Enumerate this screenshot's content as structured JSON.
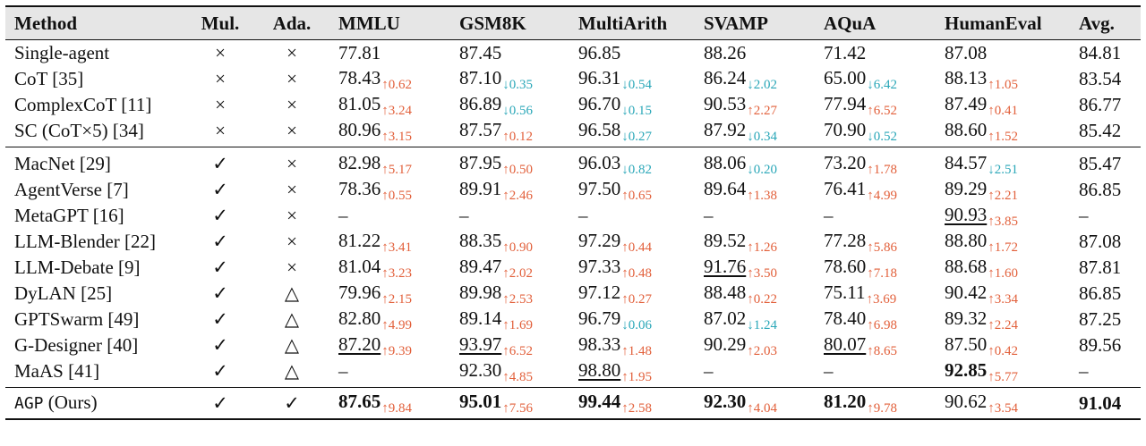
{
  "header": [
    "Method",
    "Mul.",
    "Ada.",
    "MMLU",
    "GSM8K",
    "MultiArith",
    "SVAMP",
    "AQuA",
    "HumanEval",
    "Avg."
  ],
  "rows": [
    {
      "method": "Single-agent",
      "mul": "×",
      "ada": "×",
      "cells": [
        {
          "v": "77.81"
        },
        {
          "v": "87.45"
        },
        {
          "v": "96.85"
        },
        {
          "v": "88.26"
        },
        {
          "v": "71.42"
        },
        {
          "v": "87.08"
        }
      ],
      "avg": "84.81"
    },
    {
      "method": "CoT [35]",
      "mul": "×",
      "ada": "×",
      "cells": [
        {
          "v": "78.43",
          "d": "↑0.62",
          "dir": "up"
        },
        {
          "v": "87.10",
          "d": "↓0.35",
          "dir": "down"
        },
        {
          "v": "96.31",
          "d": "↓0.54",
          "dir": "down"
        },
        {
          "v": "86.24",
          "d": "↓2.02",
          "dir": "down"
        },
        {
          "v": "65.00",
          "d": "↓6.42",
          "dir": "down"
        },
        {
          "v": "88.13",
          "d": "↑1.05",
          "dir": "up"
        }
      ],
      "avg": "83.54"
    },
    {
      "method": "ComplexCoT [11]",
      "mul": "×",
      "ada": "×",
      "cells": [
        {
          "v": "81.05",
          "d": "↑3.24",
          "dir": "up"
        },
        {
          "v": "86.89",
          "d": "↓0.56",
          "dir": "down"
        },
        {
          "v": "96.70",
          "d": "↓0.15",
          "dir": "down"
        },
        {
          "v": "90.53",
          "d": "↑2.27",
          "dir": "up"
        },
        {
          "v": "77.94",
          "d": "↑6.52",
          "dir": "up"
        },
        {
          "v": "87.49",
          "d": "↑0.41",
          "dir": "up"
        }
      ],
      "avg": "86.77"
    },
    {
      "method": "SC (CoT×5) [34]",
      "mul": "×",
      "ada": "×",
      "cells": [
        {
          "v": "80.96",
          "d": "↑3.15",
          "dir": "up"
        },
        {
          "v": "87.57",
          "d": "↑0.12",
          "dir": "up"
        },
        {
          "v": "96.58",
          "d": "↓0.27",
          "dir": "down"
        },
        {
          "v": "87.92",
          "d": "↓0.34",
          "dir": "down"
        },
        {
          "v": "70.90",
          "d": "↓0.52",
          "dir": "down"
        },
        {
          "v": "88.60",
          "d": "↑1.52",
          "dir": "up"
        }
      ],
      "avg": "85.42"
    },
    {
      "method": "MacNet [29]",
      "mul": "✓",
      "ada": "×",
      "cells": [
        {
          "v": "82.98",
          "d": "↑5.17",
          "dir": "up"
        },
        {
          "v": "87.95",
          "d": "↑0.50",
          "dir": "up"
        },
        {
          "v": "96.03",
          "d": "↓0.82",
          "dir": "down"
        },
        {
          "v": "88.06",
          "d": "↓0.20",
          "dir": "down"
        },
        {
          "v": "73.20",
          "d": "↑1.78",
          "dir": "up"
        },
        {
          "v": "84.57",
          "d": "↓2.51",
          "dir": "down"
        }
      ],
      "avg": "85.47"
    },
    {
      "method": "AgentVerse [7]",
      "mul": "✓",
      "ada": "×",
      "cells": [
        {
          "v": "78.36",
          "d": "↑0.55",
          "dir": "up"
        },
        {
          "v": "89.91",
          "d": "↑2.46",
          "dir": "up"
        },
        {
          "v": "97.50",
          "d": "↑0.65",
          "dir": "up"
        },
        {
          "v": "89.64",
          "d": "↑1.38",
          "dir": "up"
        },
        {
          "v": "76.41",
          "d": "↑4.99",
          "dir": "up"
        },
        {
          "v": "89.29",
          "d": "↑2.21",
          "dir": "up"
        }
      ],
      "avg": "86.85"
    },
    {
      "method": "MetaGPT [16]",
      "mul": "✓",
      "ada": "×",
      "cells": [
        {
          "v": "–"
        },
        {
          "v": "–"
        },
        {
          "v": "–"
        },
        {
          "v": "–"
        },
        {
          "v": "–"
        },
        {
          "v": "90.93",
          "d": "↑3.85",
          "dir": "up",
          "style": "u"
        }
      ],
      "avg": "–"
    },
    {
      "method": "LLM-Blender [22]",
      "mul": "✓",
      "ada": "×",
      "cells": [
        {
          "v": "81.22",
          "d": "↑3.41",
          "dir": "up"
        },
        {
          "v": "88.35",
          "d": "↑0.90",
          "dir": "up"
        },
        {
          "v": "97.29",
          "d": "↑0.44",
          "dir": "up"
        },
        {
          "v": "89.52",
          "d": "↑1.26",
          "dir": "up"
        },
        {
          "v": "77.28",
          "d": "↑5.86",
          "dir": "up"
        },
        {
          "v": "88.80",
          "d": "↑1.72",
          "dir": "up"
        }
      ],
      "avg": "87.08"
    },
    {
      "method": "LLM-Debate [9]",
      "mul": "✓",
      "ada": "×",
      "cells": [
        {
          "v": "81.04",
          "d": "↑3.23",
          "dir": "up"
        },
        {
          "v": "89.47",
          "d": "↑2.02",
          "dir": "up"
        },
        {
          "v": "97.33",
          "d": "↑0.48",
          "dir": "up"
        },
        {
          "v": "91.76",
          "d": "↑3.50",
          "dir": "up",
          "style": "u"
        },
        {
          "v": "78.60",
          "d": "↑7.18",
          "dir": "up"
        },
        {
          "v": "88.68",
          "d": "↑1.60",
          "dir": "up"
        }
      ],
      "avg": "87.81"
    },
    {
      "method": "DyLAN [25]",
      "mul": "✓",
      "ada": "△",
      "cells": [
        {
          "v": "79.96",
          "d": "↑2.15",
          "dir": "up"
        },
        {
          "v": "89.98",
          "d": "↑2.53",
          "dir": "up"
        },
        {
          "v": "97.12",
          "d": "↑0.27",
          "dir": "up"
        },
        {
          "v": "88.48",
          "d": "↑0.22",
          "dir": "up"
        },
        {
          "v": "75.11",
          "d": "↑3.69",
          "dir": "up"
        },
        {
          "v": "90.42",
          "d": "↑3.34",
          "dir": "up"
        }
      ],
      "avg": "86.85"
    },
    {
      "method": "GPTSwarm [49]",
      "mul": "✓",
      "ada": "△",
      "cells": [
        {
          "v": "82.80",
          "d": "↑4.99",
          "dir": "up"
        },
        {
          "v": "89.14",
          "d": "↑1.69",
          "dir": "up"
        },
        {
          "v": "96.79",
          "d": "↓0.06",
          "dir": "down"
        },
        {
          "v": "87.02",
          "d": "↓1.24",
          "dir": "down"
        },
        {
          "v": "78.40",
          "d": "↑6.98",
          "dir": "up"
        },
        {
          "v": "89.32",
          "d": "↑2.24",
          "dir": "up"
        }
      ],
      "avg": "87.25"
    },
    {
      "method": "G-Designer [40]",
      "mul": "✓",
      "ada": "△",
      "cells": [
        {
          "v": "87.20",
          "d": "↑9.39",
          "dir": "up",
          "style": "u"
        },
        {
          "v": "93.97",
          "d": "↑6.52",
          "dir": "up",
          "style": "u"
        },
        {
          "v": "98.33",
          "d": "↑1.48",
          "dir": "up"
        },
        {
          "v": "90.29",
          "d": "↑2.03",
          "dir": "up"
        },
        {
          "v": "80.07",
          "d": "↑8.65",
          "dir": "up",
          "style": "u"
        },
        {
          "v": "87.50",
          "d": "↑0.42",
          "dir": "up"
        }
      ],
      "avg": "89.56"
    },
    {
      "method": "MaAS [41]",
      "mul": "✓",
      "ada": "△",
      "cells": [
        {
          "v": "–"
        },
        {
          "v": "92.30",
          "d": "↑4.85",
          "dir": "up"
        },
        {
          "v": "98.80",
          "d": "↑1.95",
          "dir": "up",
          "style": "u"
        },
        {
          "v": "–"
        },
        {
          "v": "–"
        },
        {
          "v": "92.85",
          "d": "↑5.77",
          "dir": "up",
          "style": "b"
        }
      ],
      "avg": "–"
    },
    {
      "method": "AGP",
      "method_suffix": " (Ours)",
      "mul": "✓",
      "ada": "✓",
      "cells": [
        {
          "v": "87.65",
          "d": "↑9.84",
          "dir": "up",
          "style": "b"
        },
        {
          "v": "95.01",
          "d": "↑7.56",
          "dir": "up",
          "style": "b"
        },
        {
          "v": "99.44",
          "d": "↑2.58",
          "dir": "up",
          "style": "b"
        },
        {
          "v": "92.30",
          "d": "↑4.04",
          "dir": "up",
          "style": "b"
        },
        {
          "v": "81.20",
          "d": "↑9.78",
          "dir": "up",
          "style": "b"
        },
        {
          "v": "90.62",
          "d": "↑3.54",
          "dir": "up"
        }
      ],
      "avg": "91.04",
      "avg_style": "b"
    }
  ],
  "colors": {
    "up": "#e2603b",
    "down": "#2aa7b8",
    "header_bg": "#e6e6e6"
  }
}
